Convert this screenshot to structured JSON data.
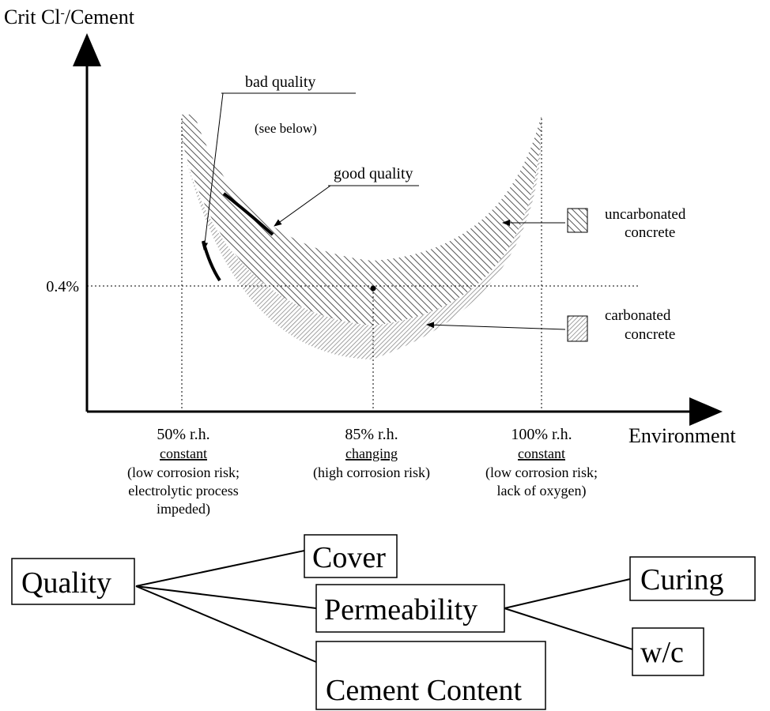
{
  "y_axis_label": {
    "base": "Crit Cl",
    "sup": "-",
    "rest": "/Cement"
  },
  "x_axis_label": "Environment",
  "threshold_label": "0.4%",
  "x_labels": [
    {
      "title": "50% r.h.",
      "condition": "constant",
      "notes": [
        "(low corrosion risk;",
        "electrolytic process",
        "impeded)"
      ]
    },
    {
      "title": "85% r.h.",
      "condition": "changing",
      "notes": [
        "(high corrosion risk)"
      ]
    },
    {
      "title": "100% r.h.",
      "condition": "constant",
      "notes": [
        "(low corrosion risk;",
        "lack of oxygen)"
      ]
    }
  ],
  "annotations": {
    "bad_quality": "bad quality",
    "see_below": "(see below)",
    "good_quality": "good quality"
  },
  "legend": [
    {
      "lines": [
        "uncarbonated",
        "concrete"
      ]
    },
    {
      "lines": [
        "carbonated",
        "concrete"
      ]
    }
  ],
  "tree": {
    "root": "Quality",
    "children": [
      "Cover",
      "Permeability",
      "Cement Content"
    ],
    "permeability_children": [
      "Curing",
      "w/c"
    ]
  }
}
